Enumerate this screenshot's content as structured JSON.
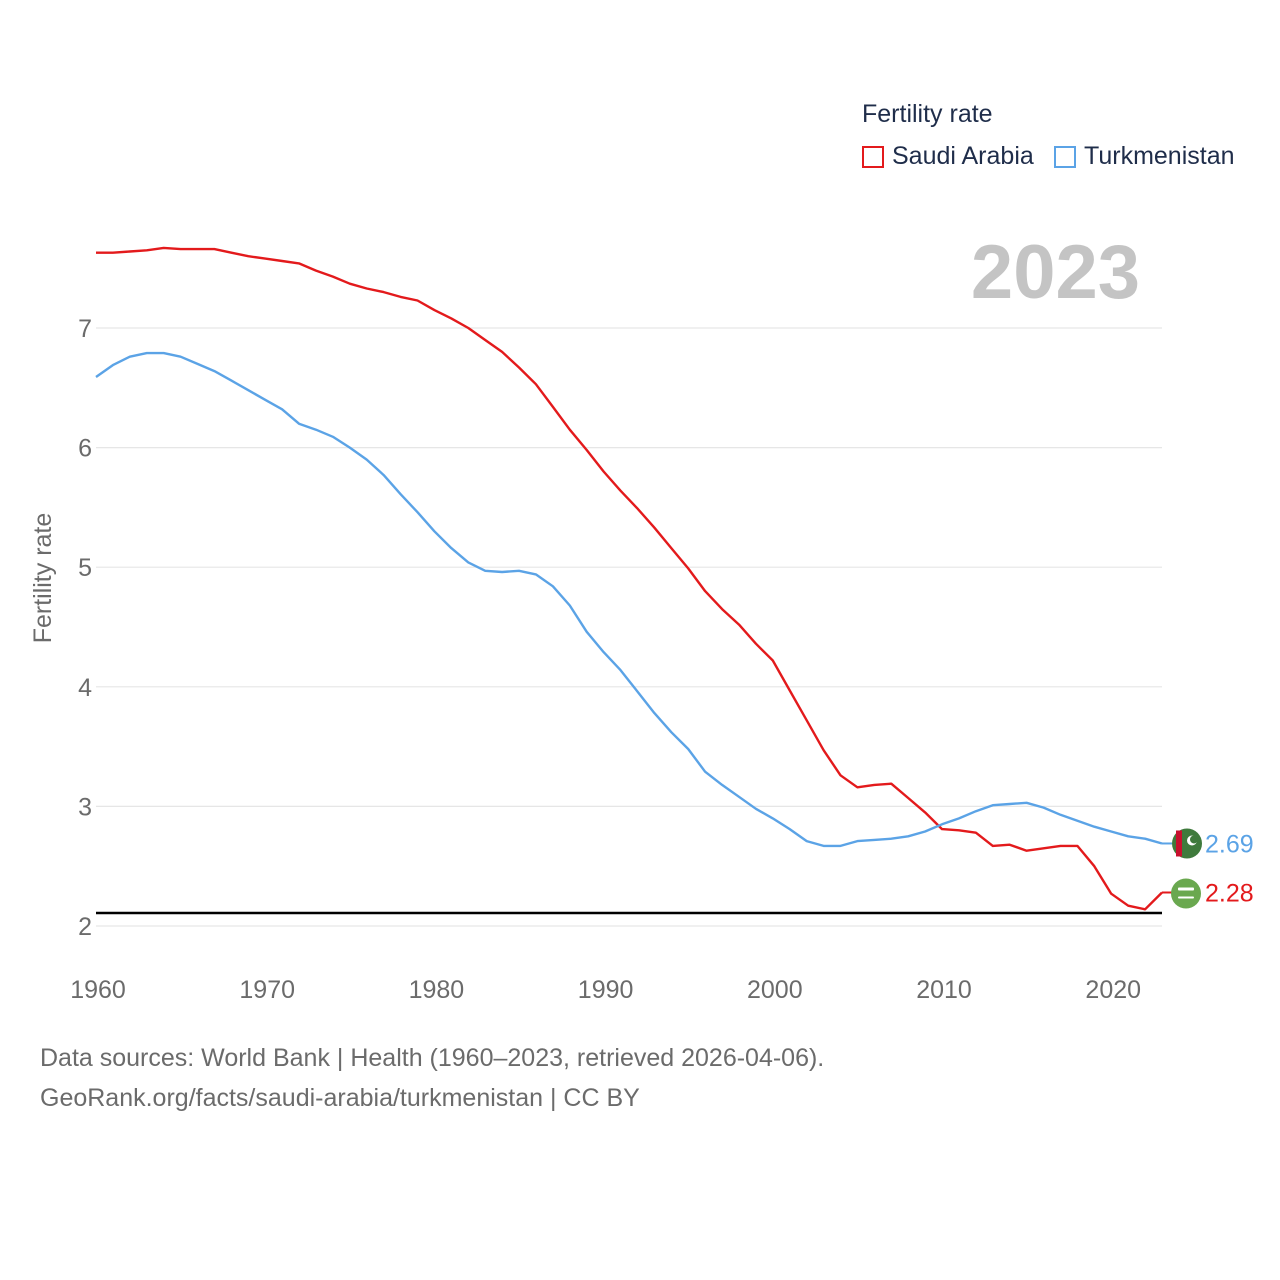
{
  "legend": {
    "title": "Fertility rate",
    "items": [
      {
        "label": "Saudi Arabia",
        "color": "#e31a1c"
      },
      {
        "label": "Turkmenistan",
        "color": "#5ba3e6"
      }
    ]
  },
  "footer": {
    "line1": "Data sources: World Bank | Health (1960–2023, retrieved 2026-04-06).",
    "line2": "GeoRank.org/facts/saudi-arabia/turkmenistan | CC BY"
  },
  "chart_data": {
    "type": "line",
    "title": "Fertility rate",
    "current_year_label": "2023",
    "ylabel": "Fertility rate",
    "xlabel": "",
    "xlim": [
      1960,
      2023
    ],
    "ylim": [
      1.8,
      7.9
    ],
    "yticks": [
      2,
      3,
      4,
      5,
      6,
      7
    ],
    "xticks": [
      1960,
      1970,
      1980,
      1990,
      2000,
      2010,
      2020
    ],
    "grid": true,
    "reference_line": {
      "value": 2.1,
      "color": "#000000"
    },
    "x": [
      1960,
      1961,
      1962,
      1963,
      1964,
      1965,
      1966,
      1967,
      1968,
      1969,
      1970,
      1971,
      1972,
      1973,
      1974,
      1975,
      1976,
      1977,
      1978,
      1979,
      1980,
      1981,
      1982,
      1983,
      1984,
      1985,
      1986,
      1987,
      1988,
      1989,
      1990,
      1991,
      1992,
      1993,
      1994,
      1995,
      1996,
      1997,
      1998,
      1999,
      2000,
      2001,
      2002,
      2003,
      2004,
      2005,
      2006,
      2007,
      2008,
      2009,
      2010,
      2011,
      2012,
      2013,
      2014,
      2015,
      2016,
      2017,
      2018,
      2019,
      2020,
      2021,
      2022,
      2023
    ],
    "series": [
      {
        "name": "Saudi Arabia",
        "color": "#e31a1c",
        "end_label": "2.28",
        "values": [
          7.63,
          7.63,
          7.64,
          7.65,
          7.67,
          7.66,
          7.66,
          7.66,
          7.63,
          7.6,
          7.58,
          7.56,
          7.54,
          7.48,
          7.43,
          7.37,
          7.33,
          7.3,
          7.26,
          7.23,
          7.15,
          7.08,
          7.0,
          6.9,
          6.8,
          6.67,
          6.53,
          6.34,
          6.15,
          5.98,
          5.8,
          5.64,
          5.49,
          5.33,
          5.16,
          4.99,
          4.8,
          4.65,
          4.52,
          4.36,
          4.22,
          3.97,
          3.72,
          3.47,
          3.26,
          3.16,
          3.18,
          3.19,
          3.07,
          2.95,
          2.81,
          2.8,
          2.78,
          2.67,
          2.68,
          2.63,
          2.65,
          2.67,
          2.67,
          2.5,
          2.27,
          2.17,
          2.14,
          2.28
        ]
      },
      {
        "name": "Turkmenistan",
        "color": "#5ba3e6",
        "end_label": "2.69",
        "values": [
          6.59,
          6.69,
          6.76,
          6.79,
          6.79,
          6.76,
          6.7,
          6.64,
          6.56,
          6.48,
          6.4,
          6.32,
          6.2,
          6.15,
          6.09,
          6.0,
          5.9,
          5.77,
          5.61,
          5.46,
          5.3,
          5.16,
          5.04,
          4.97,
          4.96,
          4.97,
          4.94,
          4.84,
          4.68,
          4.46,
          4.29,
          4.14,
          3.96,
          3.78,
          3.62,
          3.48,
          3.29,
          3.18,
          3.08,
          2.98,
          2.9,
          2.81,
          2.71,
          2.67,
          2.67,
          2.71,
          2.72,
          2.73,
          2.75,
          2.79,
          2.85,
          2.9,
          2.96,
          3.01,
          3.02,
          3.03,
          2.99,
          2.93,
          2.88,
          2.83,
          2.79,
          2.75,
          2.73,
          2.69
        ]
      }
    ]
  }
}
